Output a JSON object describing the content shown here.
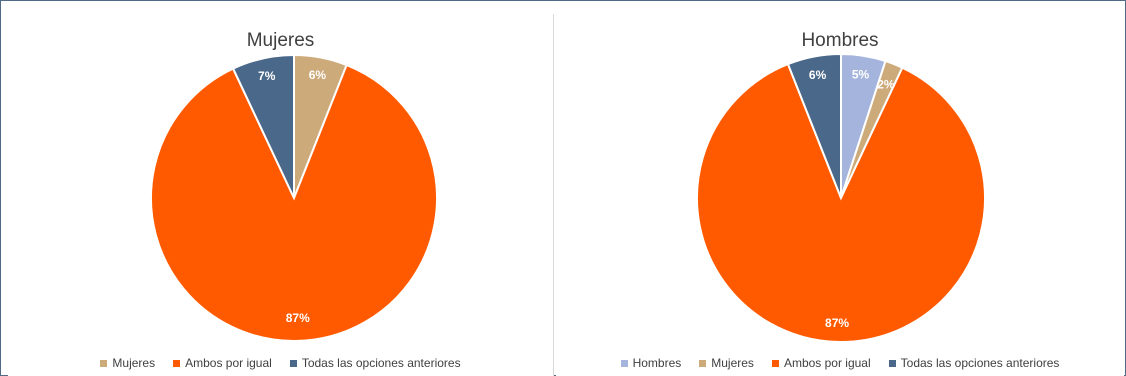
{
  "chart_data": [
    {
      "type": "pie",
      "title": "Mujeres",
      "categories": [
        "Mujeres",
        "Ambos por igual",
        "Todas las opciones anteriores"
      ],
      "values": [
        6,
        87,
        7
      ],
      "labels": [
        "6%",
        "87%",
        "7%"
      ],
      "colors": [
        "#cdaa7a",
        "#ff5a00",
        "#4a6889"
      ],
      "legend": "bottom"
    },
    {
      "type": "pie",
      "title": "Hombres",
      "categories": [
        "Hombres",
        "Mujeres",
        "Ambos por igual",
        "Todas las opciones anteriores"
      ],
      "values": [
        5,
        2,
        87,
        6
      ],
      "labels": [
        "5%",
        "2%",
        "87%",
        "6%"
      ],
      "colors": [
        "#a4b4dd",
        "#cdaa7a",
        "#ff5a00",
        "#4a6889"
      ],
      "legend": "bottom"
    }
  ]
}
